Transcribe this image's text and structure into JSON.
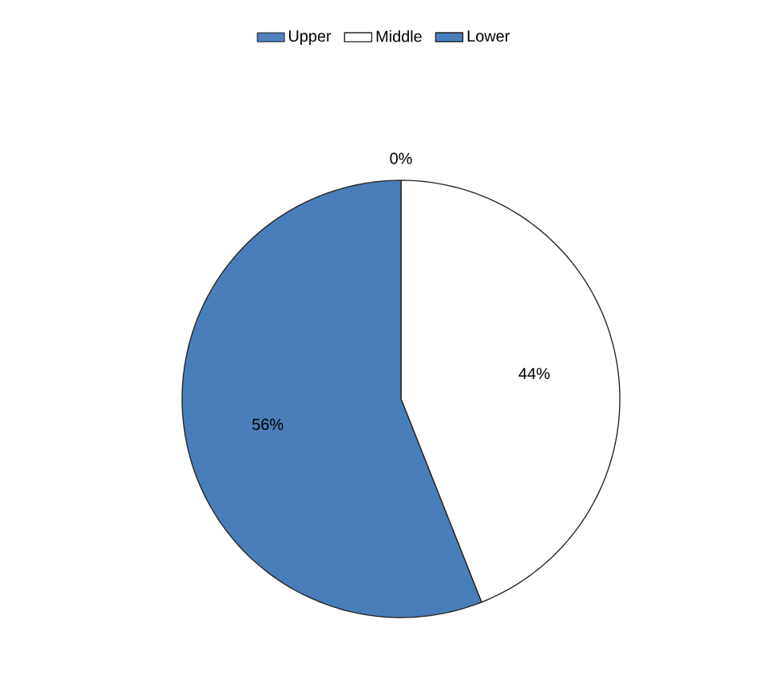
{
  "chart_data": {
    "type": "pie",
    "categories": [
      "Upper",
      "Middle",
      "Lower"
    ],
    "values": [
      0,
      44,
      56
    ],
    "colors": [
      "#4f81bd",
      "#ffffff",
      "#4a7ebb"
    ],
    "value_labels": [
      "0%",
      "44%",
      "56%"
    ],
    "legend": "top"
  }
}
